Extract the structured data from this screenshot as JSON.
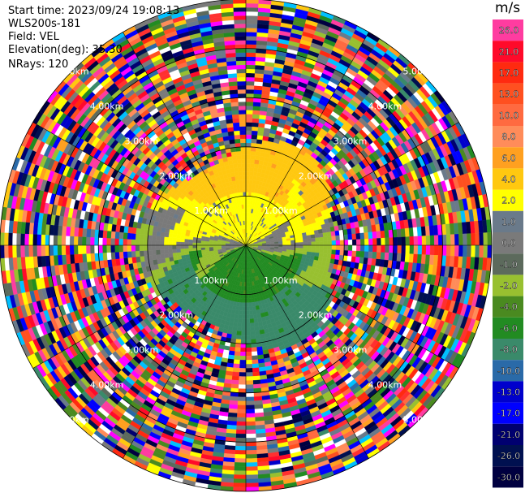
{
  "info": {
    "start_time": "Start time: 2023/09/24 19:08:13",
    "instrument": "WLS200s-181",
    "field": "Field: VEL",
    "elevation": "Elevation(deg): 35.30",
    "nrays": "NRays: 120"
  },
  "colorbar": {
    "unit": "m/s",
    "levels": [
      {
        "label": "26.0",
        "color": "#ff3ca0"
      },
      {
        "label": "21.0",
        "color": "#ff0a2a"
      },
      {
        "label": "17.0",
        "color": "#ff2a10"
      },
      {
        "label": "13.0",
        "color": "#ff5020"
      },
      {
        "label": "10.0",
        "color": "#ff6a40"
      },
      {
        "label": "8.0",
        "color": "#ff8c5a"
      },
      {
        "label": "6.0",
        "color": "#ffa020"
      },
      {
        "label": "4.0",
        "color": "#ffc810"
      },
      {
        "label": "2.0",
        "color": "#ffff00"
      },
      {
        "label": "1.0",
        "color": "#6a7a8a"
      },
      {
        "label": "0.0",
        "color": "#7a7a7a"
      },
      {
        "label": "-1.0",
        "color": "#5c6a5c"
      },
      {
        "label": "-2.0",
        "color": "#98c030"
      },
      {
        "label": "-4.0",
        "color": "#4a8a20"
      },
      {
        "label": "-6.0",
        "color": "#228b22"
      },
      {
        "label": "-8.0",
        "color": "#3a8a6a"
      },
      {
        "label": "-10.0",
        "color": "#2a6aa8"
      },
      {
        "label": "-13.0",
        "color": "#0000cc"
      },
      {
        "label": "-17.0",
        "color": "#0000ff"
      },
      {
        "label": "-21.0",
        "color": "#000070"
      },
      {
        "label": "-26.0",
        "color": "#001050"
      },
      {
        "label": "-30.0",
        "color": "#000040"
      }
    ]
  },
  "chart_data": {
    "type": "heatmap",
    "projection": "polar PPI",
    "field": "VEL",
    "range_rings": [
      "1.00km",
      "2.00km",
      "3.00km",
      "4.00km",
      "5.00km"
    ],
    "max_range_km": 5.0,
    "nrays": 120,
    "sectors": [
      {
        "range_km": [
          0,
          2.0
        ],
        "azimuth": "north half",
        "dominant_value": 2.0
      },
      {
        "range_km": [
          0,
          2.0
        ],
        "azimuth": "south half",
        "dominant_value": -4.0
      },
      {
        "range_km": [
          0,
          2.0
        ],
        "azimuth": "boundary band east-west",
        "dominant_value": 0.0
      },
      {
        "range_km": [
          2.0,
          5.0
        ],
        "azimuth": "all",
        "dominant_value": "noise (mixed)"
      }
    ]
  }
}
